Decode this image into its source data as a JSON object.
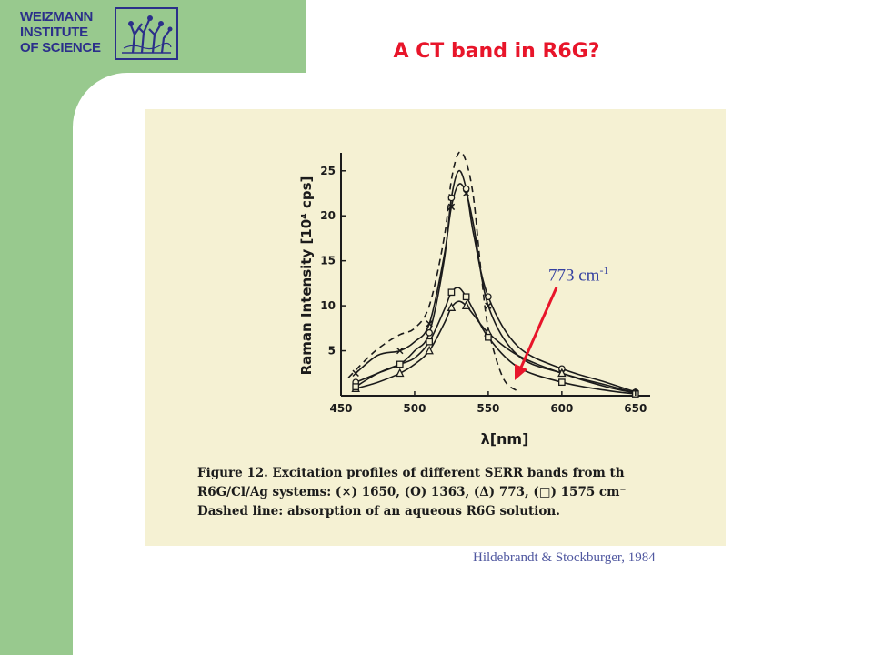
{
  "logo": {
    "lines": [
      "WEIZMANN",
      "INSTITUTE",
      "OF SCIENCE"
    ]
  },
  "slide": {
    "title": "A CT band in R6G?",
    "annotation": {
      "value": "773 cm",
      "superscript": "-1"
    },
    "citation": "Hildebrandt & Stockburger, 1984"
  },
  "figure": {
    "caption": [
      "Figure 12.  Excitation profiles of different SERR bands from th",
      "R6G/Cl/Ag systems:  (×) 1650, (O) 1363, (Δ) 773, (□) 1575 cm⁻",
      "Dashed line:  absorption of an aqueous R6G solution."
    ]
  },
  "chart_data": {
    "type": "line",
    "xlabel": "λ[nm]",
    "ylabel": "Raman Intensity [10⁴ cps]",
    "xlim": [
      450,
      660
    ],
    "ylim": [
      0,
      27
    ],
    "x_ticks": [
      "450",
      "500",
      "550",
      "600",
      "650"
    ],
    "y_ticks": [
      "5",
      "10",
      "15",
      "20",
      "25"
    ],
    "series": [
      {
        "name": "Dashed line",
        "dashed": true,
        "marker": "none",
        "x": [
          455,
          470,
          480,
          490,
          500,
          510,
          520,
          525,
          530,
          535,
          540,
          545,
          550,
          560,
          570
        ],
        "y": [
          2.0,
          4.5,
          5.8,
          6.8,
          7.5,
          10.0,
          17.5,
          24.0,
          27.0,
          26.0,
          22.0,
          14.0,
          7.5,
          2.0,
          0.5
        ]
      },
      {
        "name": "(×) 1650",
        "marker": "x",
        "x": [
          460,
          475,
          490,
          500,
          510,
          520,
          525,
          530,
          535,
          540,
          550,
          570,
          600,
          630,
          650
        ],
        "y": [
          2.5,
          4.5,
          5.0,
          6.0,
          8.0,
          15.5,
          21.0,
          23.5,
          22.5,
          19.0,
          10.0,
          4.5,
          2.5,
          1.2,
          0.3
        ]
      },
      {
        "name": "(O) 1363",
        "marker": "o",
        "x": [
          460,
          475,
          490,
          500,
          510,
          520,
          525,
          530,
          535,
          540,
          550,
          570,
          600,
          630,
          650
        ],
        "y": [
          1.5,
          2.5,
          3.5,
          5.0,
          7.0,
          15.0,
          22.0,
          25.0,
          23.0,
          18.0,
          11.0,
          5.5,
          3.0,
          1.5,
          0.4
        ]
      },
      {
        "name": "(Δ) 773",
        "marker": "triangle",
        "x": [
          460,
          475,
          490,
          500,
          510,
          520,
          525,
          530,
          535,
          540,
          550,
          570,
          600,
          630,
          650
        ],
        "y": [
          0.8,
          1.5,
          2.5,
          3.5,
          5.0,
          8.0,
          9.8,
          10.5,
          10.0,
          9.0,
          7.0,
          4.5,
          2.5,
          1.0,
          0.3
        ]
      },
      {
        "name": "(□) 1575",
        "marker": "square",
        "x": [
          460,
          475,
          490,
          500,
          510,
          520,
          525,
          530,
          535,
          540,
          550,
          570,
          600,
          630,
          650
        ],
        "y": [
          1.0,
          2.5,
          3.5,
          4.2,
          6.0,
          9.5,
          11.5,
          12.0,
          11.0,
          9.5,
          6.5,
          3.2,
          1.5,
          0.6,
          0.2
        ]
      }
    ],
    "colors": {
      "accent": "#e8152a",
      "annotation": "#3440a0",
      "citation": "#5058a0",
      "sidebar": "#98c98e",
      "figure_bg": "#f5f1d3"
    }
  }
}
